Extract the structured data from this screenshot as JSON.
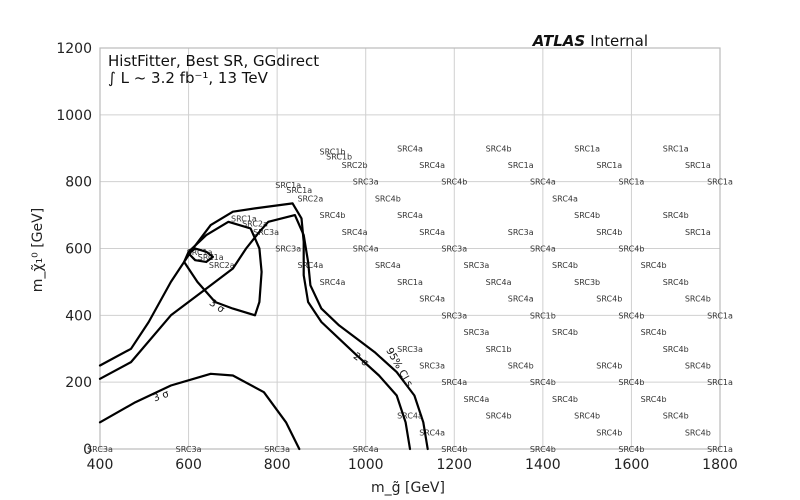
{
  "chart_data": {
    "type": "line",
    "title": "",
    "experiment": {
      "name": "ATLAS",
      "status": "Internal"
    },
    "header_lines": [
      "HistFitter, Best SR, GGdirect",
      "∫ L ~ 3.2 fb⁻¹, 13 TeV"
    ],
    "xlabel": "m_g̃ [GeV]",
    "ylabel": "m_χ̃₁⁰ [GeV]",
    "xlim": [
      400,
      1800
    ],
    "ylim": [
      0,
      1200
    ],
    "x_ticks": [
      400,
      600,
      800,
      1000,
      1200,
      1400,
      1600,
      1800
    ],
    "y_ticks": [
      0,
      200,
      400,
      600,
      800,
      1000,
      1200
    ],
    "grid": true,
    "series": [
      {
        "label": "95% CLs",
        "points": [
          [
            1100,
            0
          ],
          [
            1090,
            80
          ],
          [
            1070,
            160
          ],
          [
            1030,
            220
          ],
          [
            980,
            280
          ],
          [
            940,
            330
          ],
          [
            900,
            380
          ],
          [
            870,
            440
          ],
          [
            860,
            520
          ],
          [
            860,
            620
          ],
          [
            855,
            690
          ],
          [
            835,
            735
          ],
          [
            750,
            720
          ],
          [
            700,
            710
          ],
          [
            650,
            670
          ],
          [
            610,
            600
          ],
          [
            560,
            500
          ],
          [
            510,
            380
          ],
          [
            470,
            300
          ],
          [
            400,
            250
          ]
        ]
      },
      {
        "label": "2 σ",
        "points": [
          [
            1140,
            0
          ],
          [
            1130,
            80
          ],
          [
            1110,
            160
          ],
          [
            1070,
            230
          ],
          [
            1020,
            290
          ],
          [
            980,
            330
          ],
          [
            940,
            370
          ],
          [
            900,
            420
          ],
          [
            875,
            490
          ],
          [
            870,
            560
          ],
          [
            860,
            640
          ],
          [
            840,
            700
          ],
          [
            780,
            680
          ],
          [
            760,
            650
          ],
          [
            730,
            600
          ],
          [
            700,
            540
          ],
          [
            640,
            480
          ],
          [
            560,
            400
          ],
          [
            470,
            260
          ],
          [
            400,
            210
          ]
        ]
      },
      {
        "label": "3 σ",
        "points": [
          [
            850,
            0
          ],
          [
            820,
            80
          ],
          [
            770,
            170
          ],
          [
            700,
            220
          ],
          [
            650,
            225
          ],
          [
            560,
            190
          ],
          [
            480,
            140
          ],
          [
            400,
            80
          ]
        ]
      },
      {
        "label": "3 σ",
        "points": [
          [
            750,
            400
          ],
          [
            760,
            440
          ],
          [
            765,
            530
          ],
          [
            760,
            600
          ],
          [
            740,
            660
          ],
          [
            690,
            680
          ],
          [
            640,
            640
          ],
          [
            600,
            590
          ],
          [
            590,
            560
          ],
          [
            620,
            500
          ],
          [
            660,
            440
          ],
          [
            700,
            420
          ],
          [
            750,
            400
          ]
        ]
      },
      {
        "label": "",
        "points": [
          [
            640,
            560
          ],
          [
            655,
            575
          ],
          [
            640,
            590
          ],
          [
            615,
            600
          ],
          [
            600,
            585
          ],
          [
            615,
            565
          ],
          [
            640,
            560
          ]
        ]
      }
    ],
    "contour_labels": [
      {
        "text": "95% CLs",
        "at": [
          1070,
          240
        ]
      },
      {
        "text": "2 σ",
        "at": [
          985,
          260
        ]
      },
      {
        "text": "3 σ",
        "at": [
          540,
          150
        ]
      },
      {
        "text": "3 σ",
        "at": [
          660,
          420
        ]
      }
    ],
    "signal_region_labels": [
      {
        "text": "SRC1b",
        "x": 925,
        "y": 890
      },
      {
        "text": "SRC1b",
        "x": 940,
        "y": 875
      },
      {
        "text": "SRC2b",
        "x": 975,
        "y": 850
      },
      {
        "text": "SRC4a",
        "x": 1100,
        "y": 900
      },
      {
        "text": "SRC4b",
        "x": 1300,
        "y": 900
      },
      {
        "text": "SRC1a",
        "x": 1500,
        "y": 900
      },
      {
        "text": "SRC1a",
        "x": 1700,
        "y": 900
      },
      {
        "text": "SRC4a",
        "x": 1150,
        "y": 850
      },
      {
        "text": "SRC1a",
        "x": 1350,
        "y": 850
      },
      {
        "text": "SRC1a",
        "x": 1550,
        "y": 850
      },
      {
        "text": "SRC1a",
        "x": 1750,
        "y": 850
      },
      {
        "text": "SRC3a",
        "x": 1000,
        "y": 800
      },
      {
        "text": "SRC4b",
        "x": 1200,
        "y": 800
      },
      {
        "text": "SRC4a",
        "x": 1400,
        "y": 800
      },
      {
        "text": "SRC1a",
        "x": 1600,
        "y": 800
      },
      {
        "text": "SRC1a",
        "x": 1800,
        "y": 800
      },
      {
        "text": "SRC1a",
        "x": 825,
        "y": 790
      },
      {
        "text": "SRC1a",
        "x": 850,
        "y": 775
      },
      {
        "text": "SRC2a",
        "x": 875,
        "y": 750
      },
      {
        "text": "SRC4b",
        "x": 1050,
        "y": 750
      },
      {
        "text": "SRC4a",
        "x": 1450,
        "y": 750
      },
      {
        "text": "SRC4b",
        "x": 925,
        "y": 700
      },
      {
        "text": "SRC4a",
        "x": 1100,
        "y": 700
      },
      {
        "text": "SRC4b",
        "x": 1500,
        "y": 700
      },
      {
        "text": "SRC4b",
        "x": 1700,
        "y": 700
      },
      {
        "text": "SRC1a",
        "x": 725,
        "y": 690
      },
      {
        "text": "SRC2a",
        "x": 750,
        "y": 675
      },
      {
        "text": "SRC3a",
        "x": 775,
        "y": 650
      },
      {
        "text": "SRC4a",
        "x": 975,
        "y": 650
      },
      {
        "text": "SRC4a",
        "x": 1150,
        "y": 650
      },
      {
        "text": "SRC3a",
        "x": 1350,
        "y": 650
      },
      {
        "text": "SRC4b",
        "x": 1550,
        "y": 650
      },
      {
        "text": "SRC1a",
        "x": 1750,
        "y": 650
      },
      {
        "text": "SRC1a",
        "x": 625,
        "y": 590
      },
      {
        "text": "SRC1a",
        "x": 650,
        "y": 575
      },
      {
        "text": "SRC2a",
        "x": 675,
        "y": 550
      },
      {
        "text": "SRC3a",
        "x": 825,
        "y": 600
      },
      {
        "text": "SRC4a",
        "x": 1000,
        "y": 600
      },
      {
        "text": "SRC3a",
        "x": 1200,
        "y": 600
      },
      {
        "text": "SRC4a",
        "x": 1400,
        "y": 600
      },
      {
        "text": "SRC4b",
        "x": 1600,
        "y": 600
      },
      {
        "text": "SRC4a",
        "x": 875,
        "y": 550
      },
      {
        "text": "SRC4a",
        "x": 1050,
        "y": 550
      },
      {
        "text": "SRC3a",
        "x": 1250,
        "y": 550
      },
      {
        "text": "SRC4b",
        "x": 1450,
        "y": 550
      },
      {
        "text": "SRC4b",
        "x": 1650,
        "y": 550
      },
      {
        "text": "SRC4a",
        "x": 925,
        "y": 500
      },
      {
        "text": "SRC1a",
        "x": 1100,
        "y": 500
      },
      {
        "text": "SRC4a",
        "x": 1300,
        "y": 500
      },
      {
        "text": "SRC3b",
        "x": 1500,
        "y": 500
      },
      {
        "text": "SRC4b",
        "x": 1700,
        "y": 500
      },
      {
        "text": "SRC4a",
        "x": 1150,
        "y": 450
      },
      {
        "text": "SRC4a",
        "x": 1350,
        "y": 450
      },
      {
        "text": "SRC4b",
        "x": 1550,
        "y": 450
      },
      {
        "text": "SRC4b",
        "x": 1750,
        "y": 450
      },
      {
        "text": "SRC3a",
        "x": 1200,
        "y": 400
      },
      {
        "text": "SRC1b",
        "x": 1400,
        "y": 400
      },
      {
        "text": "SRC4b",
        "x": 1600,
        "y": 400
      },
      {
        "text": "SRC1a",
        "x": 1800,
        "y": 400
      },
      {
        "text": "SRC3a",
        "x": 1250,
        "y": 350
      },
      {
        "text": "SRC4b",
        "x": 1450,
        "y": 350
      },
      {
        "text": "SRC4b",
        "x": 1650,
        "y": 350
      },
      {
        "text": "SRC3a",
        "x": 1100,
        "y": 300
      },
      {
        "text": "SRC1b",
        "x": 1300,
        "y": 300
      },
      {
        "text": "SRC4b",
        "x": 1700,
        "y": 300
      },
      {
        "text": "SRC3a",
        "x": 1150,
        "y": 250
      },
      {
        "text": "SRC4b",
        "x": 1350,
        "y": 250
      },
      {
        "text": "SRC4b",
        "x": 1550,
        "y": 250
      },
      {
        "text": "SRC4b",
        "x": 1750,
        "y": 250
      },
      {
        "text": "SRC4a",
        "x": 1200,
        "y": 200
      },
      {
        "text": "SRC4b",
        "x": 1400,
        "y": 200
      },
      {
        "text": "SRC4b",
        "x": 1600,
        "y": 200
      },
      {
        "text": "SRC1a",
        "x": 1800,
        "y": 200
      },
      {
        "text": "SRC4a",
        "x": 1250,
        "y": 150
      },
      {
        "text": "SRC4b",
        "x": 1450,
        "y": 150
      },
      {
        "text": "SRC4b",
        "x": 1650,
        "y": 150
      },
      {
        "text": "SRC4a",
        "x": 1100,
        "y": 100
      },
      {
        "text": "SRC4b",
        "x": 1300,
        "y": 100
      },
      {
        "text": "SRC4b",
        "x": 1500,
        "y": 100
      },
      {
        "text": "SRC4b",
        "x": 1700,
        "y": 100
      },
      {
        "text": "SRC4a",
        "x": 1150,
        "y": 50
      },
      {
        "text": "SRC4b",
        "x": 1550,
        "y": 50
      },
      {
        "text": "SRC4b",
        "x": 1750,
        "y": 50
      },
      {
        "text": "SRC3a",
        "x": 400,
        "y": 0
      },
      {
        "text": "SRC3a",
        "x": 600,
        "y": 0
      },
      {
        "text": "SRC3a",
        "x": 800,
        "y": 0
      },
      {
        "text": "SRC4a",
        "x": 1000,
        "y": 0
      },
      {
        "text": "SRC4b",
        "x": 1200,
        "y": 0
      },
      {
        "text": "SRC4b",
        "x": 1400,
        "y": 0
      },
      {
        "text": "SRC4b",
        "x": 1600,
        "y": 0
      },
      {
        "text": "SRC1a",
        "x": 1800,
        "y": 0
      }
    ]
  }
}
